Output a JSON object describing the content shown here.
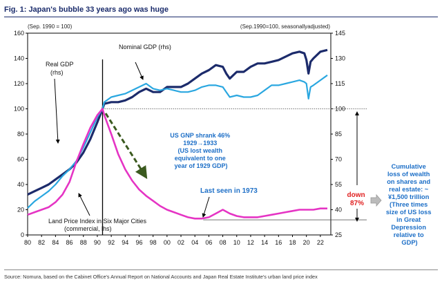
{
  "figure": {
    "title": "Fig. 1: Japan's bubble 33 years ago was huge",
    "source": "Source: Nomura, based on the Cabinet Office's Annual Report on National Accounts and Japan Real Estate Institute's urban land price index"
  },
  "chart_data": {
    "type": "line",
    "title": "Fig. 1: Japan's bubble 33 years ago was huge",
    "left_axis_note": "(Sep. 1990 = 100)",
    "right_axis_note": "(Sep.1990=100, seasonallyadjusted)",
    "xlim": [
      1980,
      2023.5
    ],
    "ylim_left": [
      0,
      160
    ],
    "ylim_right": [
      25,
      145
    ],
    "x_ticks": [
      1980,
      1982,
      1984,
      1986,
      1988,
      1990,
      1992,
      1994,
      1996,
      1998,
      2000,
      2002,
      2004,
      2006,
      2008,
      2010,
      2012,
      2014,
      2016,
      2018,
      2020,
      2022
    ],
    "x_tick_labels": [
      "80",
      "82",
      "84",
      "86",
      "88",
      "90",
      "92",
      "94",
      "96",
      "98",
      "00",
      "02",
      "04",
      "06",
      "08",
      "10",
      "12",
      "14",
      "16",
      "18",
      "20",
      "22"
    ],
    "y_left_ticks": [
      0,
      20,
      40,
      60,
      80,
      100,
      120,
      140,
      160
    ],
    "y_left_labels": [
      "0",
      "20",
      "40",
      "60",
      "80",
      "100",
      "120",
      "140",
      "160"
    ],
    "y_right_ticks": [
      25,
      40,
      55,
      70,
      85,
      100,
      115,
      130,
      145
    ],
    "y_right_labels": [
      "25",
      "40",
      "55",
      "70",
      "85",
      "100",
      "115",
      "130",
      "145"
    ],
    "series": [
      {
        "name": "Real GDP",
        "label": "Real GDP",
        "label2": "(rhs)",
        "axis": "right",
        "color": "#1c2b6b",
        "x": [
          1980,
          1981,
          1982,
          1983,
          1984,
          1985,
          1986,
          1987,
          1988,
          1989,
          1990,
          1990.75,
          1991,
          1992,
          1993,
          1994,
          1995,
          1996,
          1997,
          1998,
          1999,
          2000,
          2001,
          2002,
          2003,
          2004,
          2005,
          2006,
          2007,
          2008,
          2008.5,
          2009,
          2010,
          2011,
          2012,
          2013,
          2014,
          2015,
          2016,
          2017,
          2018,
          2019,
          2019.7,
          2020,
          2020.3,
          2020.6,
          2021,
          2022,
          2023
        ],
        "y": [
          49,
          51,
          53,
          55,
          58,
          61,
          64,
          68,
          74,
          82,
          92,
          100,
          103,
          104,
          104,
          105,
          107,
          110,
          112,
          110,
          110,
          113,
          113,
          113,
          115,
          118,
          121,
          123,
          126,
          125,
          121,
          118,
          122,
          122,
          125,
          127,
          127,
          128,
          129,
          131,
          133,
          134,
          133,
          129,
          121,
          128,
          130,
          134,
          135
        ]
      },
      {
        "name": "Nominal GDP",
        "label": "Nominal  GDP  (rhs)",
        "axis": "right",
        "color": "#2aa7e0",
        "x": [
          1980,
          1981,
          1982,
          1983,
          1984,
          1985,
          1986,
          1987,
          1988,
          1989,
          1990,
          1990.75,
          1991,
          1992,
          1993,
          1994,
          1995,
          1996,
          1997,
          1998,
          1999,
          2000,
          2001,
          2002,
          2003,
          2004,
          2005,
          2006,
          2007,
          2008,
          2008.5,
          2009,
          2010,
          2011,
          2012,
          2013,
          2014,
          2015,
          2016,
          2017,
          2018,
          2019,
          2019.7,
          2020,
          2020.3,
          2020.6,
          2021,
          2022,
          2023
        ],
        "y": [
          41,
          45,
          48,
          51,
          55,
          60,
          64,
          69,
          77,
          86,
          95,
          100,
          104,
          107,
          108,
          109,
          111,
          113,
          115,
          112,
          111,
          112,
          111,
          110,
          110,
          111,
          113,
          114,
          114,
          113,
          110,
          107,
          108,
          107,
          107,
          108,
          111,
          114,
          114,
          115,
          116,
          117,
          116,
          115,
          106,
          113,
          114,
          117,
          120
        ]
      },
      {
        "name": "Land Price Index in Six Major Cities (commercial, lhs)",
        "label": "Land Price Index in Six Major Cities",
        "label2": "(commercial, lhs)",
        "axis": "left",
        "color": "#e534c4",
        "x": [
          1980,
          1981,
          1982,
          1983,
          1984,
          1985,
          1986,
          1987,
          1988,
          1989,
          1990,
          1990.75,
          1991,
          1992,
          1993,
          1994,
          1995,
          1996,
          1997,
          1998,
          1999,
          2000,
          2001,
          2002,
          2003,
          2004,
          2005,
          2006,
          2007,
          2008,
          2009,
          2010,
          2011,
          2012,
          2013,
          2014,
          2015,
          2016,
          2017,
          2018,
          2019,
          2020,
          2021,
          2022,
          2023
        ],
        "y": [
          16,
          18,
          20,
          22,
          26,
          32,
          42,
          58,
          72,
          85,
          95,
          100,
          95,
          80,
          64,
          52,
          43,
          36,
          31,
          27,
          23,
          20,
          18,
          16,
          14,
          13,
          13,
          14,
          17,
          20,
          17,
          15,
          14,
          14,
          14,
          15,
          16,
          17,
          18,
          19,
          20,
          20,
          20,
          21,
          21
        ]
      }
    ],
    "reference_levels": [
      {
        "label": "100",
        "axis": "left",
        "value": 100
      },
      {
        "label": "Last seen in 1973 (land price level)",
        "axis": "left",
        "value": 12
      }
    ],
    "annotations": {
      "us_lines": [
        "US GNP shrank 46%",
        "1929→1933",
        "(US lost wealth",
        "equivalent to one",
        "year of 1929 GDP)"
      ],
      "last_seen": "Last seen in 1973",
      "down": [
        "down",
        "87%"
      ],
      "cumulative": [
        "Cumulative",
        "loss of wealth",
        "on shares and",
        "real estate: ~",
        "¥1,500 trillion",
        "(Three times",
        "size of US loss",
        "in Great",
        "Depression",
        "relative to",
        "GDP)"
      ]
    },
    "colors": {
      "real": "#1c2b6b",
      "nominal": "#2aa7e0",
      "land": "#e534c4",
      "arrow": "#3b5a1f",
      "us_text": "#1d6fc7",
      "red": "#e02020",
      "title": "#1a2b6b",
      "box": "#aaaaaa"
    }
  }
}
